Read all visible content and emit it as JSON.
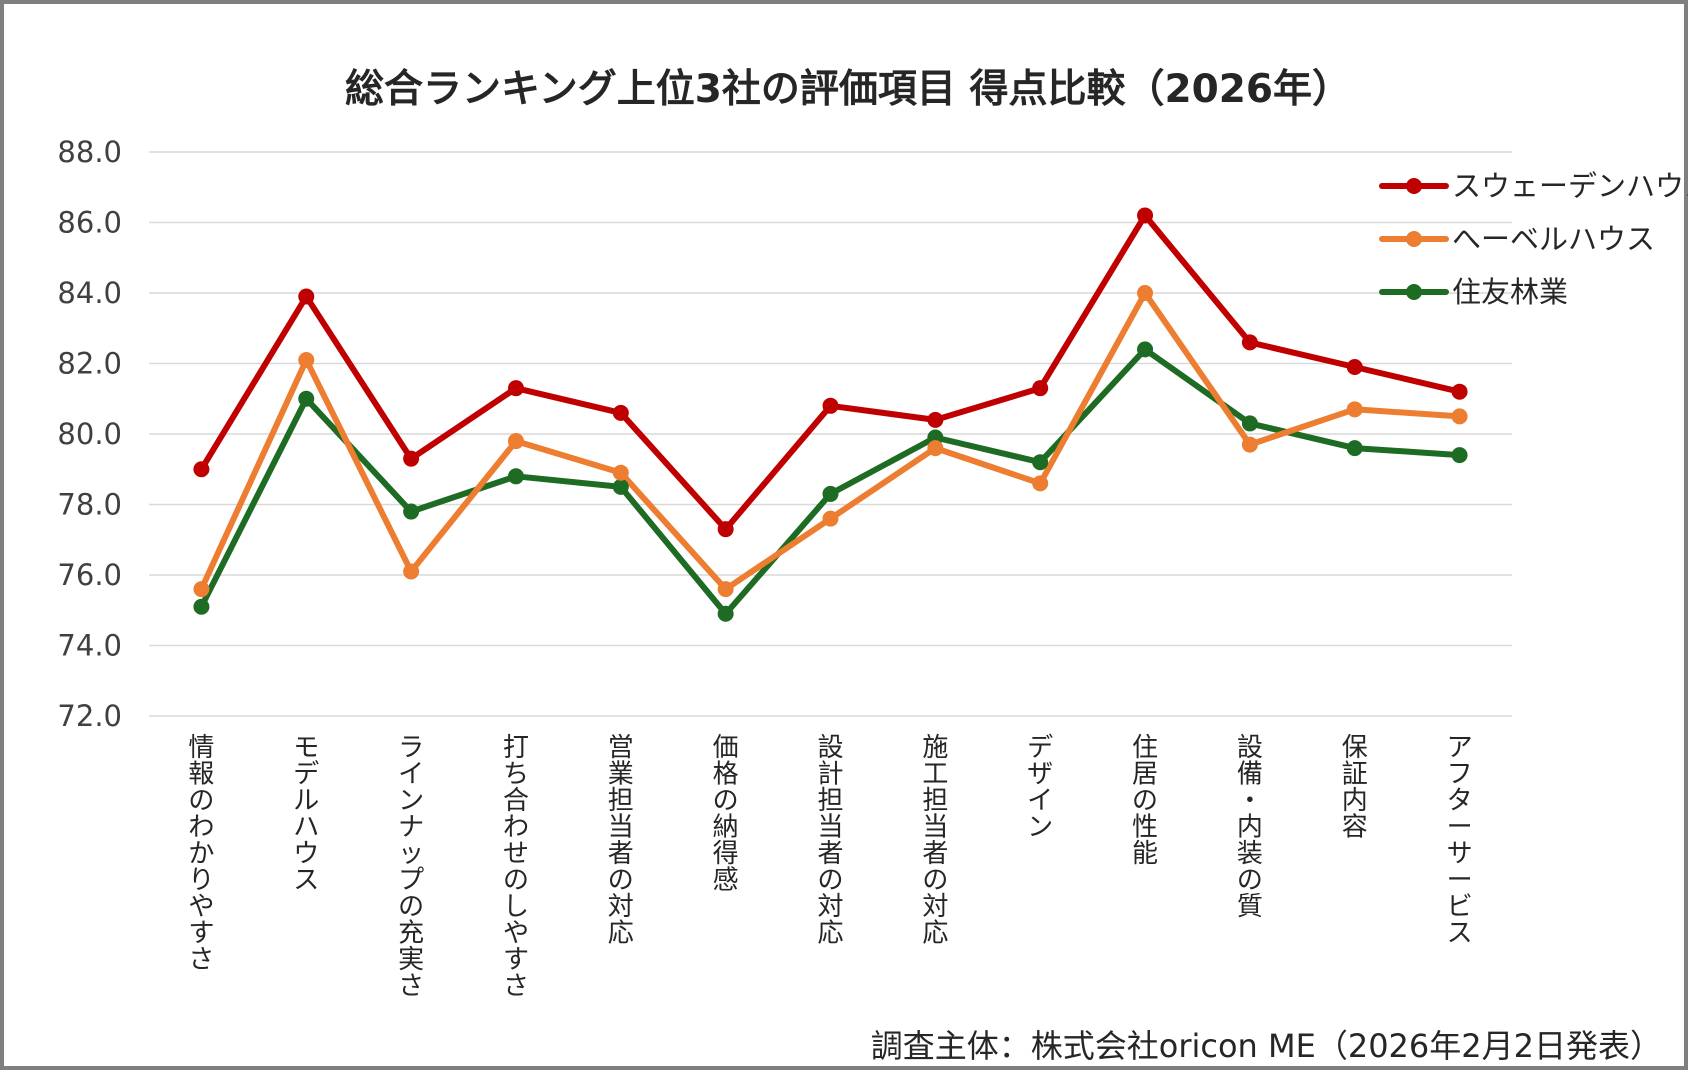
{
  "chart_data": {
    "type": "line",
    "title": "総合ランキング上位3社の評価項目 得点比較（2026年）",
    "source_note": "調査主体：株式会社oricon ME（2026年2月2日発表）",
    "xlabel": "",
    "ylabel": "",
    "ylim": [
      72.0,
      88.0
    ],
    "ytick_step": 2.0,
    "ytick_decimals": 1,
    "grid": true,
    "legend_position": "top-right",
    "categories": [
      "情報のわかりやすさ",
      "モデルハウス",
      "ラインナップの充実さ",
      "打ち合わせのしやすさ",
      "営業担当者の対応",
      "価格の納得感",
      "設計担当者の対応",
      "施工担当者の対応",
      "デザイン",
      "住居の性能",
      "設備・内装の質",
      "保証内容",
      "アフターサービス"
    ],
    "series": [
      {
        "name": "スウェーデンハウス",
        "color": "#c00000",
        "values": [
          79.0,
          83.9,
          79.3,
          81.3,
          80.6,
          77.3,
          80.8,
          80.4,
          81.3,
          86.2,
          82.6,
          81.9,
          81.2
        ]
      },
      {
        "name": "へーベルハウス",
        "color": "#ed7d31",
        "values": [
          75.6,
          82.1,
          76.1,
          79.8,
          78.9,
          75.6,
          77.6,
          79.6,
          78.6,
          84.0,
          79.7,
          80.7,
          80.5
        ]
      },
      {
        "name": "住友林業",
        "color": "#1e6b24",
        "values": [
          75.1,
          81.0,
          77.8,
          78.8,
          78.5,
          74.9,
          78.3,
          79.9,
          79.2,
          82.4,
          80.3,
          79.6,
          79.4
        ]
      }
    ]
  }
}
